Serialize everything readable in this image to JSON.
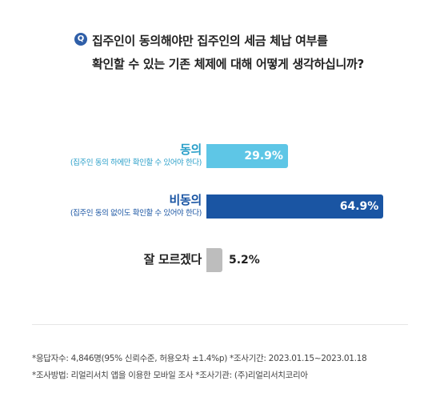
{
  "question": {
    "badge": "Q",
    "line1": "집주인이 동의해야만 집주인의 세금 체납 여부를",
    "line2": "확인할 수 있는 기존 체제에 대해 어떻게 생각하십니까?"
  },
  "chart_data": {
    "type": "bar",
    "orientation": "horizontal",
    "title": "집주인이 동의해야만 집주인의 세금 체납 여부를 확인할 수 있는 기존 체제에 대해 어떻게 생각하십니까?",
    "categories": [
      "동의",
      "비동의",
      "잘 모르겠다"
    ],
    "category_notes": [
      "(집주인 동의 하에만 확인할 수 있어야 한다)",
      "(집주인 동의 없이도 확인할 수 있어야 한다)",
      ""
    ],
    "values": [
      29.9,
      64.9,
      5.2
    ],
    "value_labels": [
      "29.9%",
      "64.9%",
      "5.2%"
    ],
    "unit": "%",
    "xlim": [
      0,
      100
    ],
    "colors": [
      "#5ec6e6",
      "#1a55a3",
      "#bdbdbd"
    ],
    "label_colors": [
      "#2a9fc9",
      "#1a55a3",
      "#222222"
    ],
    "value_label_colors": [
      "#ffffff",
      "#ffffff",
      "#222222"
    ],
    "grid": false,
    "legend": "none"
  },
  "footnotes": {
    "line1": "*응답자수: 4,846명(95% 신뢰수준, 허용오차 ±1.4%p)  *조사기간: 2023.01.15~2023.01.18",
    "line2": "*조사방법: 리얼리서치 앱을 이용한 모바일 조사  *조사기관: (주)리얼리서치코리아"
  }
}
